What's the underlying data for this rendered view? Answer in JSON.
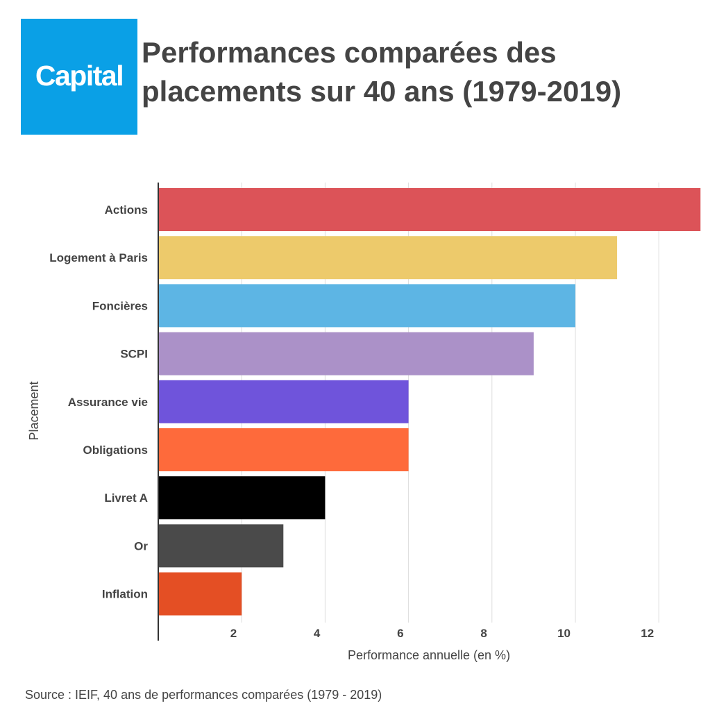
{
  "brand": {
    "logo_text": "Capital",
    "color": "#0aa0e6"
  },
  "header": {
    "title": "Performances comparées des placements sur 40 ans (1979-2019)"
  },
  "chart_data": {
    "type": "bar",
    "orientation": "horizontal",
    "categories": [
      "Actions",
      "Logement à Paris",
      "Foncières",
      "SCPI",
      "Assurance vie",
      "Obligations",
      "Livret A",
      "Or",
      "Inflation"
    ],
    "values": [
      13,
      11,
      10,
      9,
      6,
      6,
      4,
      3,
      2
    ],
    "colors": [
      "#dc5358",
      "#edca6b",
      "#5db5e4",
      "#ab91c8",
      "#6f54db",
      "#fe6a3b",
      "#000000",
      "#4a4a4a",
      "#e44f24"
    ],
    "xlabel": "Performance annuelle (en %)",
    "ylabel": "Placement",
    "xticks": [
      2,
      4,
      6,
      8,
      10,
      12
    ],
    "xlim": [
      0,
      13
    ],
    "grid": true,
    "legend": "none"
  },
  "footer": {
    "source": "Source : IEIF, 40 ans de performances comparées (1979 - 2019)"
  }
}
